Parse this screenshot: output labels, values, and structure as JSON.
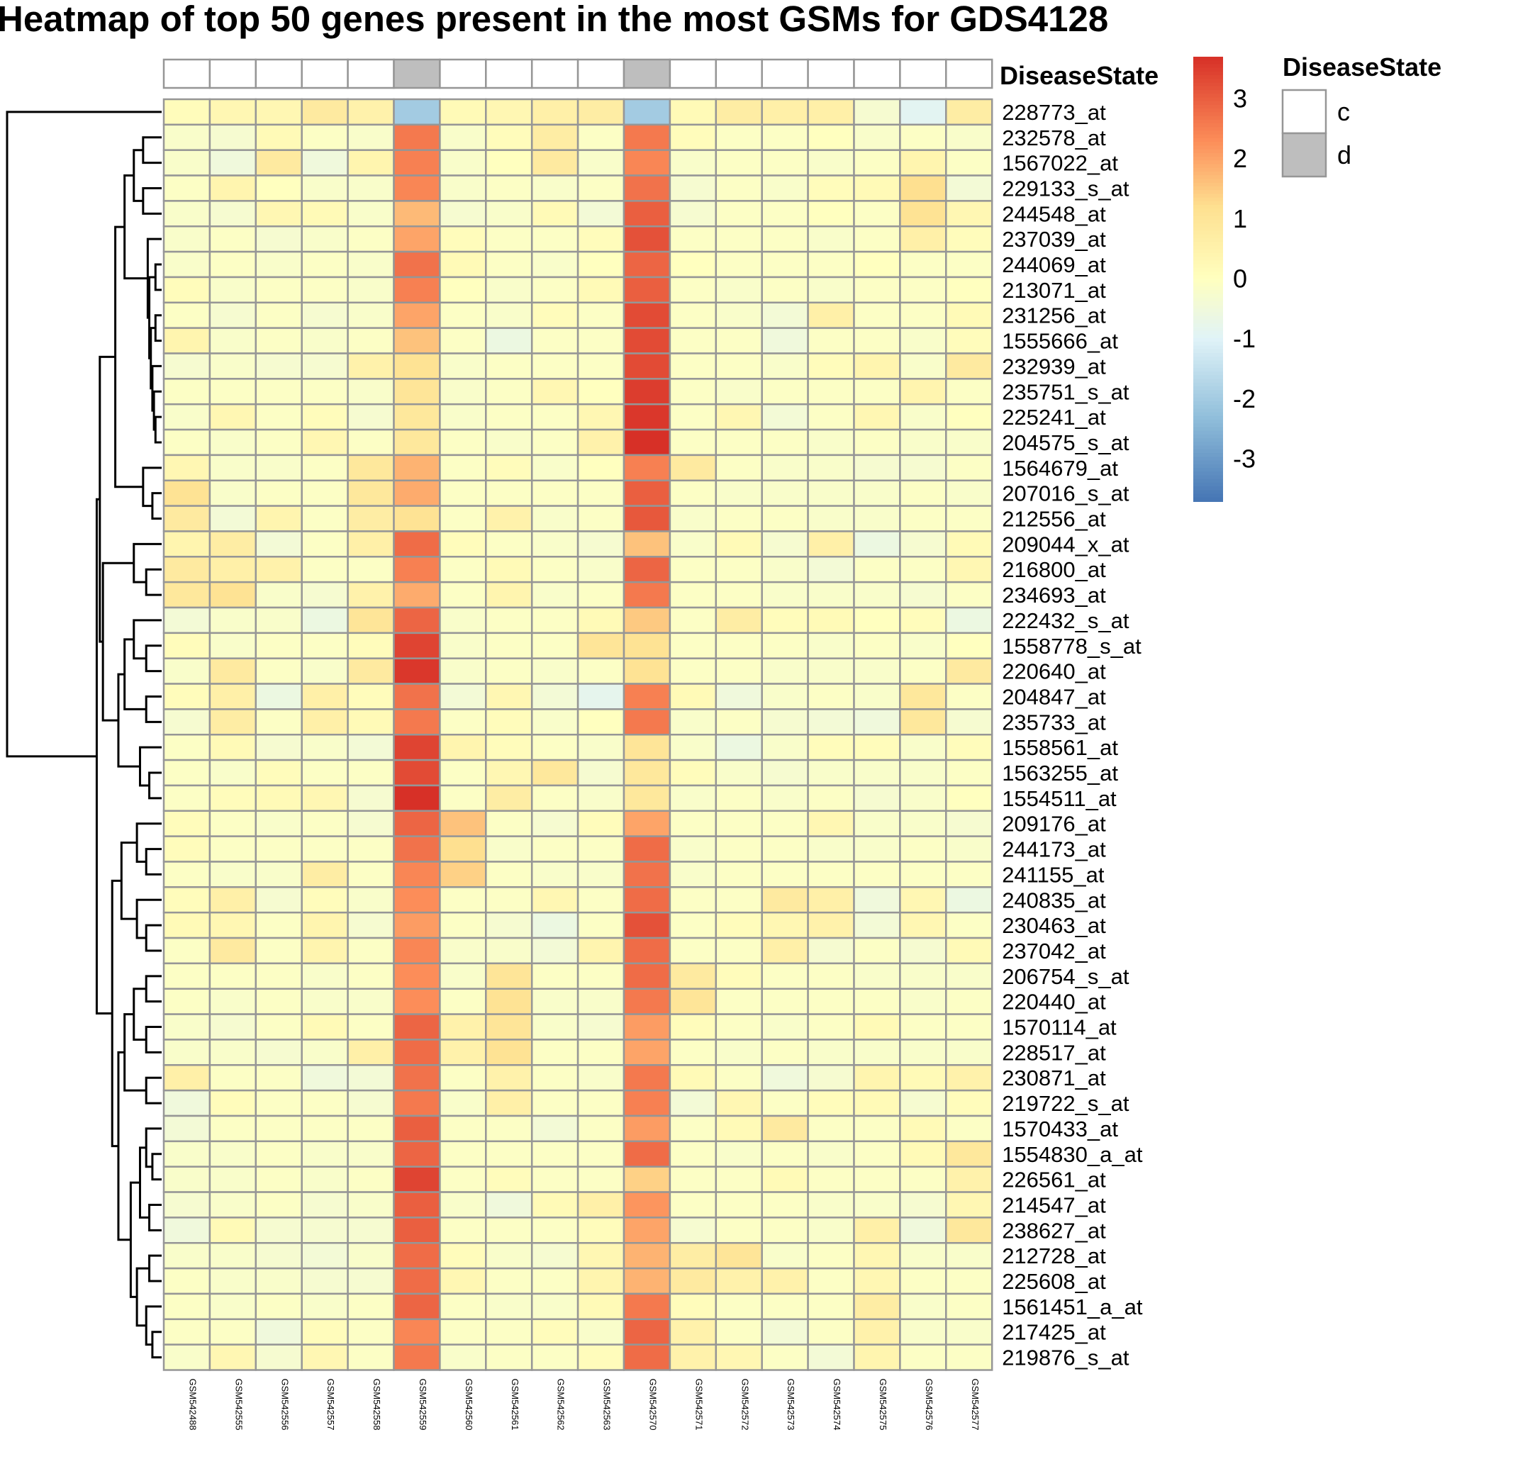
{
  "chart_data": {
    "type": "heatmap",
    "title": "Heatmap of top 50 genes present in the most GSMs for GDS4128",
    "annotation_label": "DiseaseState",
    "legend_title": "DiseaseState",
    "legend_levels": [
      {
        "label": "c",
        "color": "#ffffff"
      },
      {
        "label": "d",
        "color": "#bebebe"
      }
    ],
    "colorbar_ticks": [
      "3",
      "2",
      "1",
      "0",
      "-1",
      "-2",
      "-3"
    ],
    "colorbar_values": [
      3,
      2,
      1,
      0,
      -1,
      -2,
      -3
    ],
    "color_range": [
      -3.7,
      3.7
    ],
    "colors": {
      "low": "#4575b4",
      "mid": "#ffffbf",
      "high": "#d73027",
      "cell_border": "#969696",
      "annotation_d": "#bebebe"
    },
    "columns": [
      "GSM542488",
      "GSM542555",
      "GSM542556",
      "GSM542557",
      "GSM542558",
      "GSM542559",
      "GSM542560",
      "GSM542561",
      "GSM542562",
      "GSM542563",
      "GSM542570",
      "GSM542571",
      "GSM542572",
      "GSM542573",
      "GSM542574",
      "GSM542575",
      "GSM542576",
      "GSM542577"
    ],
    "disease_state": [
      "c",
      "c",
      "c",
      "c",
      "c",
      "d",
      "c",
      "c",
      "c",
      "c",
      "d",
      "c",
      "c",
      "c",
      "c",
      "c",
      "c",
      "c"
    ],
    "rows": [
      "228773_at",
      "232578_at",
      "1567022_at",
      "229133_s_at",
      "244548_at",
      "237039_at",
      "244069_at",
      "213071_at",
      "231256_at",
      "1555666_at",
      "232939_at",
      "235751_s_at",
      "225241_at",
      "204575_s_at",
      "1564679_at",
      "207016_s_at",
      "212556_at",
      "209044_x_at",
      "216800_at",
      "234693_at",
      "222432_s_at",
      "1558778_s_at",
      "220640_at",
      "204847_at",
      "235733_at",
      "1558561_at",
      "1563255_at",
      "1554511_at",
      "209176_at",
      "244173_at",
      "241155_at",
      "240835_at",
      "230463_at",
      "237042_at",
      "206754_s_at",
      "220440_at",
      "1570114_at",
      "228517_at",
      "230871_at",
      "219722_s_at",
      "1570433_at",
      "1554830_a_at",
      "226561_at",
      "214547_at",
      "238627_at",
      "212728_at",
      "225608_at",
      "1561451_a_at",
      "217425_at",
      "219876_s_at"
    ],
    "values": [
      [
        0.1,
        0.3,
        0.3,
        0.8,
        0.5,
        -2.0,
        0.2,
        0.3,
        0.6,
        0.7,
        -2.0,
        0.2,
        0.7,
        0.6,
        0.6,
        -0.3,
        -0.9,
        0.7
      ],
      [
        -0.2,
        -0.3,
        0.2,
        -0.1,
        -0.2,
        2.6,
        -0.2,
        0.1,
        0.7,
        -0.1,
        2.6,
        0.1,
        -0.1,
        -0.1,
        0.0,
        -0.2,
        -0.1,
        -0.2
      ],
      [
        -0.2,
        -0.5,
        0.8,
        -0.5,
        0.4,
        2.5,
        -0.2,
        0.0,
        0.8,
        -0.2,
        2.4,
        -0.2,
        -0.1,
        -0.1,
        -0.2,
        -0.1,
        0.4,
        -0.1
      ],
      [
        -0.1,
        0.4,
        0.0,
        -0.2,
        -0.2,
        2.4,
        -0.2,
        -0.1,
        -0.2,
        -0.1,
        2.7,
        -0.3,
        -0.1,
        -0.2,
        0.1,
        0.2,
        1.2,
        -0.4
      ],
      [
        -0.2,
        -0.3,
        0.3,
        0.2,
        -0.2,
        1.7,
        -0.3,
        -0.2,
        0.2,
        -0.4,
        3.0,
        -0.3,
        -0.1,
        -0.1,
        0.0,
        -0.1,
        1.1,
        0.3
      ],
      [
        -0.2,
        -0.1,
        -0.3,
        -0.2,
        -0.1,
        2.0,
        0.1,
        -0.1,
        -0.1,
        0.1,
        3.2,
        -0.1,
        -0.1,
        -0.1,
        -0.2,
        -0.1,
        0.6,
        0.1
      ],
      [
        -0.2,
        -0.1,
        -0.2,
        -0.1,
        -0.2,
        2.7,
        0.2,
        -0.1,
        -0.2,
        0.0,
        2.9,
        0.0,
        -0.1,
        -0.1,
        -0.1,
        0.0,
        -0.1,
        -0.1
      ],
      [
        0.1,
        -0.2,
        -0.1,
        -0.1,
        -0.2,
        2.5,
        0.0,
        -0.2,
        -0.1,
        0.2,
        3.0,
        -0.1,
        -0.2,
        -0.1,
        -0.2,
        -0.1,
        -0.1,
        0.0
      ],
      [
        -0.1,
        -0.3,
        -0.1,
        -0.3,
        -0.2,
        2.0,
        -0.1,
        -0.2,
        0.1,
        -0.1,
        3.3,
        -0.1,
        -0.2,
        -0.4,
        0.6,
        -0.1,
        -0.1,
        0.2
      ],
      [
        0.4,
        -0.2,
        -0.1,
        -0.2,
        -0.1,
        1.6,
        -0.1,
        -0.6,
        -0.1,
        -0.1,
        3.3,
        -0.1,
        -0.1,
        -0.5,
        -0.1,
        -0.1,
        -0.2,
        0.1
      ],
      [
        -0.3,
        -0.2,
        -0.3,
        -0.3,
        0.5,
        1.1,
        -0.2,
        -0.1,
        -0.1,
        -0.1,
        3.3,
        -0.1,
        -0.1,
        -0.2,
        0.1,
        0.4,
        -0.2,
        0.8
      ],
      [
        -0.1,
        -0.1,
        -0.1,
        -0.1,
        -0.2,
        1.0,
        -0.2,
        -0.1,
        0.3,
        0.0,
        3.5,
        -0.1,
        -0.2,
        -0.1,
        -0.1,
        -0.1,
        0.4,
        -0.1
      ],
      [
        -0.2,
        0.3,
        -0.1,
        0.1,
        -0.3,
        0.9,
        -0.2,
        -0.1,
        -0.1,
        0.3,
        3.6,
        -0.1,
        0.3,
        -0.4,
        -0.1,
        0.3,
        -0.2,
        0.0
      ],
      [
        -0.1,
        -0.2,
        -0.1,
        0.3,
        -0.1,
        0.9,
        -0.1,
        -0.2,
        -0.1,
        0.5,
        3.7,
        -0.1,
        -0.1,
        -0.1,
        -0.2,
        -0.1,
        -0.2,
        -0.2
      ],
      [
        0.3,
        -0.2,
        -0.2,
        -0.1,
        0.9,
        1.8,
        -0.1,
        0.1,
        -0.2,
        0.0,
        2.5,
        0.8,
        -0.1,
        -0.2,
        -0.2,
        -0.3,
        -0.3,
        -0.1
      ],
      [
        1.1,
        -0.2,
        -0.1,
        -0.1,
        0.9,
        1.9,
        -0.1,
        -0.1,
        -0.1,
        -0.1,
        3.0,
        -0.1,
        -0.2,
        -0.2,
        -0.2,
        -0.2,
        -0.1,
        -0.2
      ],
      [
        0.8,
        -0.4,
        0.4,
        -0.1,
        0.7,
        1.1,
        -0.1,
        0.5,
        -0.2,
        -0.1,
        3.1,
        -0.2,
        -0.1,
        -0.1,
        -0.2,
        -0.2,
        -0.1,
        -0.1
      ],
      [
        0.4,
        0.7,
        -0.4,
        -0.1,
        0.6,
        2.8,
        0.1,
        -0.1,
        -0.2,
        -0.3,
        1.6,
        -0.2,
        0.2,
        -0.3,
        0.6,
        -0.6,
        -0.3,
        0.2
      ],
      [
        0.8,
        0.6,
        0.5,
        -0.1,
        -0.1,
        2.5,
        -0.1,
        0.2,
        -0.1,
        -0.2,
        2.9,
        -0.1,
        -0.1,
        -0.2,
        -0.4,
        -0.1,
        -0.1,
        0.3
      ],
      [
        0.9,
        1.1,
        -0.2,
        -0.3,
        0.5,
        1.9,
        -0.1,
        0.4,
        -0.2,
        -0.1,
        2.6,
        -0.1,
        -0.1,
        -0.2,
        -0.2,
        -0.2,
        -0.3,
        -0.1
      ],
      [
        -0.4,
        -0.2,
        -0.2,
        -0.6,
        1.0,
        2.9,
        -0.2,
        -0.1,
        -0.1,
        0.2,
        1.5,
        -0.1,
        0.7,
        0.1,
        0.2,
        0.0,
        0.1,
        -0.6
      ],
      [
        0.1,
        -0.2,
        -0.1,
        -0.1,
        0.1,
        3.4,
        -0.2,
        -0.1,
        -0.1,
        1.0,
        1.1,
        -0.1,
        -0.1,
        -0.1,
        -0.2,
        -0.1,
        -0.2,
        0.0
      ],
      [
        -0.2,
        0.8,
        -0.1,
        -0.2,
        0.8,
        3.6,
        -0.2,
        -0.1,
        -0.2,
        -0.1,
        1.1,
        -0.1,
        -0.1,
        -0.2,
        -0.2,
        -0.2,
        -0.1,
        0.8
      ],
      [
        0.1,
        0.6,
        -0.6,
        0.6,
        0.1,
        2.7,
        -0.4,
        0.3,
        -0.4,
        -0.8,
        2.5,
        0.2,
        -0.5,
        -0.2,
        -0.1,
        -0.2,
        0.9,
        -0.1
      ],
      [
        -0.3,
        0.7,
        -0.1,
        0.6,
        0.2,
        2.6,
        -0.1,
        0.1,
        -0.2,
        0.0,
        2.6,
        -0.2,
        -0.1,
        -0.3,
        -0.4,
        -0.5,
        0.9,
        -0.3
      ],
      [
        -0.1,
        0.2,
        -0.3,
        -0.2,
        -0.4,
        3.4,
        0.4,
        0.1,
        -0.1,
        -0.2,
        1.0,
        -0.2,
        -0.6,
        -0.2,
        0.1,
        0.1,
        -0.2,
        0.1
      ],
      [
        -0.1,
        -0.2,
        0.1,
        -0.1,
        -0.1,
        3.3,
        -0.1,
        0.3,
        0.9,
        -0.3,
        0.9,
        0.1,
        -0.2,
        -0.3,
        -0.2,
        -0.2,
        -0.2,
        -0.1
      ],
      [
        -0.1,
        0.1,
        0.2,
        0.3,
        -0.3,
        3.8,
        -0.1,
        0.7,
        -0.1,
        -0.2,
        0.9,
        -0.2,
        -0.1,
        -0.2,
        -0.1,
        -0.3,
        -0.2,
        0.0
      ],
      [
        0.1,
        -0.1,
        -0.2,
        -0.1,
        -0.3,
        2.9,
        1.6,
        -0.1,
        -0.3,
        0.1,
        2.0,
        -0.1,
        -0.1,
        -0.1,
        0.3,
        -0.2,
        -0.2,
        -0.3
      ],
      [
        0.1,
        -0.1,
        -0.1,
        -0.1,
        -0.1,
        2.7,
        1.2,
        -0.2,
        -0.1,
        -0.1,
        2.8,
        -0.2,
        -0.1,
        -0.1,
        -0.2,
        -0.2,
        -0.1,
        -0.2
      ],
      [
        -0.1,
        -0.2,
        -0.2,
        0.7,
        -0.1,
        2.4,
        1.4,
        -0.1,
        -0.2,
        -0.2,
        2.7,
        -0.2,
        -0.1,
        -0.1,
        -0.1,
        -0.1,
        -0.1,
        -0.1
      ],
      [
        0.1,
        0.6,
        -0.3,
        0.1,
        -0.2,
        2.3,
        -0.1,
        -0.1,
        0.3,
        -0.1,
        2.8,
        -0.1,
        -0.1,
        0.8,
        0.6,
        -0.5,
        0.3,
        -0.6
      ],
      [
        0.2,
        0.3,
        -0.1,
        0.4,
        -0.3,
        2.1,
        -0.1,
        -0.3,
        -0.6,
        -0.1,
        3.2,
        -0.1,
        0.1,
        0.3,
        0.5,
        -0.4,
        0.3,
        -0.1
      ],
      [
        -0.1,
        0.8,
        -0.1,
        0.4,
        -0.1,
        2.4,
        -0.2,
        -0.2,
        -0.4,
        0.4,
        2.8,
        -0.1,
        -0.1,
        0.6,
        -0.3,
        -0.1,
        -0.3,
        0.2
      ],
      [
        -0.1,
        -0.1,
        -0.1,
        -0.2,
        -0.1,
        2.3,
        -0.2,
        1.0,
        -0.1,
        -0.1,
        2.8,
        0.8,
        0.1,
        -0.1,
        -0.1,
        -0.2,
        -0.2,
        -0.2
      ],
      [
        -0.1,
        -0.2,
        -0.1,
        -0.2,
        -0.2,
        2.3,
        -0.1,
        1.1,
        -0.2,
        -0.2,
        2.6,
        1.0,
        -0.1,
        -0.1,
        -0.1,
        -0.1,
        -0.2,
        -0.1
      ],
      [
        -0.2,
        -0.3,
        -0.1,
        0.2,
        -0.1,
        2.9,
        0.5,
        1.0,
        -0.2,
        -0.3,
        2.1,
        0.1,
        -0.1,
        -0.2,
        -0.1,
        0.2,
        -0.1,
        -0.1
      ],
      [
        -0.2,
        -0.2,
        -0.3,
        -0.2,
        0.6,
        2.8,
        0.5,
        1.1,
        -0.1,
        -0.1,
        2.0,
        -0.1,
        -0.2,
        -0.1,
        -0.2,
        -0.2,
        -0.2,
        -0.2
      ],
      [
        0.6,
        -0.1,
        -0.1,
        -0.5,
        -0.4,
        2.7,
        -0.1,
        0.5,
        -0.1,
        -0.2,
        2.6,
        0.2,
        -0.1,
        -0.5,
        -0.3,
        0.4,
        0.2,
        0.5
      ],
      [
        -0.5,
        0.1,
        -0.1,
        -0.1,
        -0.3,
        2.6,
        -0.2,
        0.6,
        -0.1,
        -0.1,
        2.5,
        -0.4,
        0.3,
        -0.1,
        0.1,
        0.2,
        -0.3,
        0.1
      ],
      [
        -0.4,
        -0.1,
        -0.1,
        -0.1,
        -0.1,
        3.0,
        -0.1,
        -0.1,
        -0.4,
        -0.1,
        2.1,
        -0.1,
        0.2,
        0.8,
        -0.1,
        -0.1,
        0.2,
        -0.1
      ],
      [
        -0.2,
        -0.2,
        -0.1,
        -0.2,
        -0.2,
        2.9,
        -0.1,
        -0.1,
        -0.1,
        -0.1,
        2.8,
        -0.1,
        -0.2,
        -0.1,
        -0.2,
        -0.1,
        0.2,
        0.9
      ],
      [
        -0.2,
        -0.2,
        -0.1,
        -0.2,
        -0.1,
        3.4,
        -0.1,
        0.1,
        -0.1,
        -0.1,
        1.4,
        -0.1,
        -0.1,
        0.2,
        -0.1,
        -0.1,
        -0.1,
        0.5
      ],
      [
        -0.3,
        -0.2,
        -0.1,
        -0.3,
        -0.2,
        3.0,
        -0.2,
        -0.5,
        0.2,
        0.6,
        2.2,
        -0.1,
        -0.1,
        -0.1,
        -0.2,
        -0.2,
        -0.3,
        0.3
      ],
      [
        -0.5,
        0.2,
        -0.3,
        -0.3,
        -0.3,
        3.0,
        -0.1,
        -0.1,
        -0.1,
        0.1,
        2.0,
        -0.3,
        -0.1,
        -0.1,
        -0.2,
        0.6,
        -0.5,
        0.9
      ],
      [
        -0.2,
        -0.2,
        -0.3,
        -0.4,
        -0.2,
        2.8,
        0.1,
        -0.2,
        -0.3,
        0.3,
        1.8,
        0.7,
        1.0,
        -0.2,
        -0.1,
        0.3,
        -0.2,
        -0.2
      ],
      [
        -0.1,
        -0.2,
        -0.2,
        -0.3,
        -0.3,
        2.8,
        0.3,
        -0.1,
        -0.1,
        0.4,
        1.8,
        0.8,
        0.5,
        0.5,
        -0.1,
        0.3,
        -0.1,
        -0.1
      ],
      [
        -0.1,
        -0.2,
        -0.1,
        -0.2,
        -0.1,
        2.9,
        -0.1,
        -0.2,
        -0.2,
        0.2,
        2.6,
        0.1,
        -0.1,
        -0.1,
        -0.1,
        0.7,
        -0.2,
        -0.1
      ],
      [
        -0.1,
        -0.1,
        -0.5,
        0.1,
        -0.1,
        2.4,
        -0.1,
        -0.1,
        0.1,
        -0.2,
        2.9,
        0.5,
        -0.1,
        -0.4,
        -0.1,
        0.5,
        -0.2,
        -0.2
      ],
      [
        -0.2,
        0.3,
        -0.3,
        0.3,
        -0.1,
        2.6,
        -0.2,
        -0.1,
        -0.1,
        0.1,
        2.8,
        0.5,
        0.3,
        -0.1,
        -0.4,
        0.4,
        -0.1,
        -0.1
      ]
    ],
    "row_dendrogram": {
      "order": [
        "228773_at",
        "232578_at",
        "1567022_at",
        "229133_s_at",
        "244548_at",
        "237039_at",
        "244069_at",
        "213071_at",
        "231256_at",
        "1555666_at",
        "232939_at",
        "235751_s_at",
        "225241_at",
        "204575_s_at",
        "1564679_at",
        "207016_s_at",
        "212556_at",
        "209044_x_at",
        "216800_at",
        "234693_at",
        "222432_s_at",
        "1558778_s_at",
        "220640_at",
        "204847_at",
        "235733_at",
        "1558561_at",
        "1563255_at",
        "1554511_at",
        "209176_at",
        "244173_at",
        "241155_at",
        "240835_at",
        "230463_at",
        "237042_at",
        "206754_s_at",
        "220440_at",
        "1570114_at",
        "228517_at",
        "230871_at",
        "219722_s_at",
        "1570433_at",
        "1554830_a_at",
        "226561_at",
        "214547_at",
        "238627_at",
        "212728_at",
        "225608_at",
        "1561451_a_at",
        "217425_at",
        "219876_s_at"
      ],
      "merges": [
        [
          -7,
          -8,
          0.2
        ],
        [
          -9,
          -10,
          0.2
        ],
        [
          -13,
          -14,
          0.2
        ],
        [
          -12,
          3,
          0.25
        ],
        [
          -11,
          4,
          0.3
        ],
        [
          2,
          5,
          0.35
        ],
        [
          1,
          6,
          0.4
        ],
        [
          -6,
          7,
          0.45
        ],
        [
          -2,
          -3,
          0.6
        ],
        [
          -4,
          -5,
          0.6
        ],
        [
          9,
          10,
          0.9
        ],
        [
          11,
          8,
          1.2
        ],
        [
          -16,
          -17,
          0.3
        ],
        [
          -15,
          13,
          0.6
        ],
        [
          12,
          14,
          1.5
        ],
        [
          -19,
          -20,
          0.5
        ],
        [
          -18,
          16,
          0.9
        ],
        [
          -22,
          -23,
          0.5
        ],
        [
          -21,
          18,
          0.9
        ],
        [
          -24,
          -25,
          0.5
        ],
        [
          19,
          20,
          1.2
        ],
        [
          -27,
          -28,
          0.4
        ],
        [
          -26,
          22,
          0.7
        ],
        [
          21,
          23,
          1.4
        ],
        [
          17,
          24,
          1.9
        ],
        [
          15,
          25,
          2.0
        ],
        [
          -30,
          -31,
          0.5
        ],
        [
          -29,
          27,
          0.8
        ],
        [
          -33,
          -34,
          0.5
        ],
        [
          -32,
          29,
          0.8
        ],
        [
          28,
          30,
          1.3
        ],
        [
          -35,
          -36,
          0.5
        ],
        [
          -37,
          -38,
          0.5
        ],
        [
          32,
          33,
          0.9
        ],
        [
          -39,
          -40,
          0.5
        ],
        [
          34,
          35,
          1.2
        ],
        [
          -42,
          -43,
          0.3
        ],
        [
          -41,
          37,
          0.5
        ],
        [
          -44,
          -45,
          0.4
        ],
        [
          38,
          39,
          0.7
        ],
        [
          -46,
          -47,
          0.4
        ],
        [
          -49,
          -50,
          0.3
        ],
        [
          -48,
          42,
          0.5
        ],
        [
          41,
          43,
          0.8
        ],
        [
          40,
          44,
          1.0
        ],
        [
          36,
          45,
          1.4
        ],
        [
          31,
          46,
          1.6
        ],
        [
          26,
          47,
          2.1
        ],
        [
          -1,
          48,
          5.0
        ]
      ]
    }
  }
}
